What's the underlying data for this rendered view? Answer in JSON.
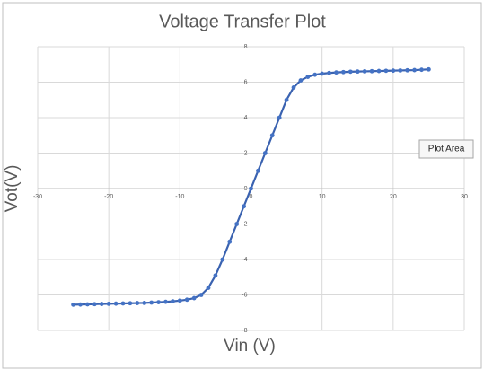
{
  "chart_data": {
    "type": "scatter",
    "title": "Voltage Transfer Plot",
    "x_label": "Vin (V)",
    "y_label": "Vot(V)",
    "tooltip": "Plot Area",
    "x": [
      -25,
      -24,
      -23,
      -22,
      -21,
      -20,
      -19,
      -18,
      -17,
      -16,
      -15,
      -14,
      -13,
      -12,
      -11,
      -10,
      -9,
      -8,
      -7,
      -6,
      -5,
      -4,
      -3,
      -2,
      -1,
      0,
      1,
      2,
      3,
      4,
      5,
      6,
      7,
      8,
      9,
      10,
      11,
      12,
      13,
      14,
      15,
      16,
      17,
      18,
      19,
      20,
      21,
      22,
      23,
      24,
      25
    ],
    "series": [
      {
        "name": "Vot",
        "color": "#4472c4",
        "line_color": "#3a62b0",
        "values": [
          -6.55,
          -6.54,
          -6.53,
          -6.52,
          -6.51,
          -6.5,
          -6.49,
          -6.48,
          -6.47,
          -6.46,
          -6.45,
          -6.43,
          -6.41,
          -6.39,
          -6.36,
          -6.32,
          -6.27,
          -6.18,
          -6.0,
          -5.6,
          -4.9,
          -4.0,
          -3.0,
          -2.0,
          -1.0,
          0,
          1.0,
          2.0,
          3.0,
          4.0,
          5.0,
          5.7,
          6.1,
          6.3,
          6.42,
          6.48,
          6.52,
          6.55,
          6.57,
          6.59,
          6.6,
          6.61,
          6.62,
          6.63,
          6.64,
          6.65,
          6.66,
          6.67,
          6.68,
          6.7,
          6.72
        ]
      }
    ],
    "xlim": [
      -30,
      30
    ],
    "xticks": [
      -30,
      -20,
      -10,
      0,
      10,
      20,
      30
    ],
    "ylim": [
      -8,
      8
    ],
    "yticks": [
      -8,
      -6,
      -4,
      -2,
      0,
      2,
      4,
      6,
      8
    ],
    "grid": true
  }
}
